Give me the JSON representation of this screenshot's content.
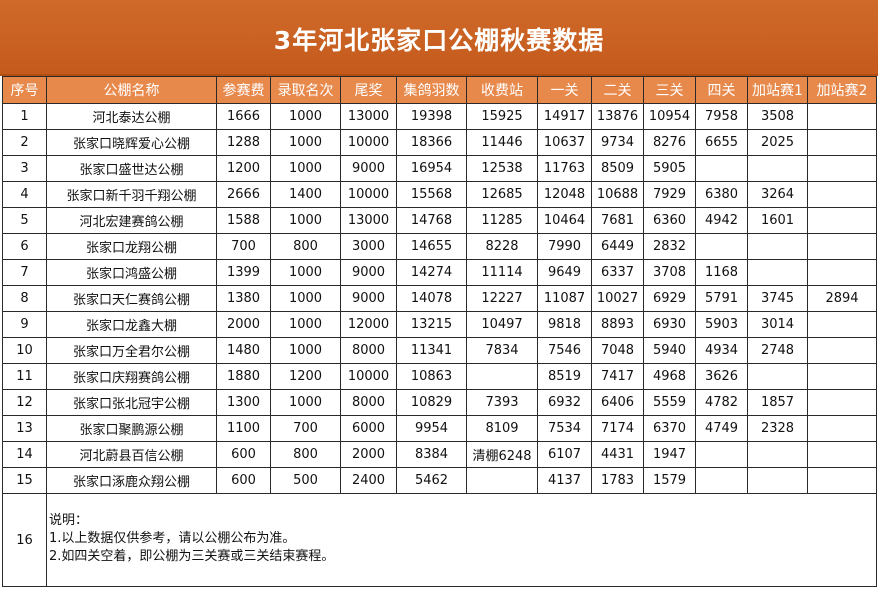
{
  "title": "3年河北张家口公棚秋赛数据",
  "columns": [
    "序号",
    "公棚名称",
    "参赛费",
    "录取名次",
    "尾奖",
    "集鸽羽数",
    "收费站",
    "一关",
    "二关",
    "三关",
    "四关",
    "加站赛1",
    "加站赛2"
  ],
  "rows": [
    [
      "1",
      "河北泰达公棚",
      "1666",
      "1000",
      "13000",
      "19398",
      "15925",
      "14917",
      "13876",
      "10954",
      "7958",
      "3508",
      ""
    ],
    [
      "2",
      "张家口晓辉爱心公棚",
      "1288",
      "1000",
      "10000",
      "18366",
      "11446",
      "10637",
      "9734",
      "8276",
      "6655",
      "2025",
      ""
    ],
    [
      "3",
      "张家口盛世达公棚",
      "1200",
      "1000",
      "9000",
      "16954",
      "12538",
      "11763",
      "8509",
      "5905",
      "",
      "",
      ""
    ],
    [
      "4",
      "张家口新千羽千翔公棚",
      "2666",
      "1400",
      "10000",
      "15568",
      "12685",
      "12048",
      "10688",
      "7929",
      "6380",
      "3264",
      ""
    ],
    [
      "5",
      "河北宏建赛鸽公棚",
      "1588",
      "1000",
      "13000",
      "14768",
      "11285",
      "10464",
      "7681",
      "6360",
      "4942",
      "1601",
      ""
    ],
    [
      "6",
      "张家口龙翔公棚",
      "700",
      "800",
      "3000",
      "14655",
      "8228",
      "7990",
      "6449",
      "2832",
      "",
      "",
      ""
    ],
    [
      "7",
      "张家口鸿盛公棚",
      "1399",
      "1000",
      "9000",
      "14274",
      "11114",
      "9649",
      "6337",
      "3708",
      "1168",
      "",
      ""
    ],
    [
      "8",
      "张家口天仁赛鸽公棚",
      "1380",
      "1000",
      "9000",
      "14078",
      "12227",
      "11087",
      "10027",
      "6929",
      "5791",
      "3745",
      "2894"
    ],
    [
      "9",
      "张家口龙鑫大棚",
      "2000",
      "1000",
      "12000",
      "13215",
      "10497",
      "9818",
      "8893",
      "6930",
      "5903",
      "3014",
      ""
    ],
    [
      "10",
      "张家口万全君尔公棚",
      "1480",
      "1000",
      "8000",
      "11341",
      "7834",
      "7546",
      "7048",
      "5940",
      "4934",
      "2748",
      ""
    ],
    [
      "11",
      "张家口庆翔赛鸽公棚",
      "1880",
      "1200",
      "10000",
      "10863",
      "",
      "8519",
      "7417",
      "4968",
      "3626",
      "",
      ""
    ],
    [
      "12",
      "张家口张北冠宇公棚",
      "1300",
      "1000",
      "8000",
      "10829",
      "7393",
      "6932",
      "6406",
      "5559",
      "4782",
      "1857",
      ""
    ],
    [
      "13",
      "张家口聚鹏源公棚",
      "1100",
      "700",
      "6000",
      "9954",
      "8109",
      "7534",
      "7174",
      "6370",
      "4749",
      "2328",
      ""
    ],
    [
      "14",
      "河北蔚县百信公棚",
      "600",
      "800",
      "2000",
      "8384",
      "清棚6248",
      "6107",
      "4431",
      "1947",
      "",
      "",
      ""
    ],
    [
      "15",
      "张家口涿鹿众翔公棚",
      "600",
      "500",
      "2400",
      "5462",
      "",
      "4137",
      "1783",
      "1579",
      "",
      "",
      ""
    ]
  ],
  "note": {
    "index": "16",
    "lines": [
      "说明：",
      "1.以上数据仅供参考，请以公棚公布为准。",
      "2.如四关空着，即公棚为三关赛或三关结束赛程。"
    ]
  },
  "colors": {
    "title_bg": "#c45a1c",
    "header_bg": "#e8894c",
    "header_text": "#ffffff"
  }
}
